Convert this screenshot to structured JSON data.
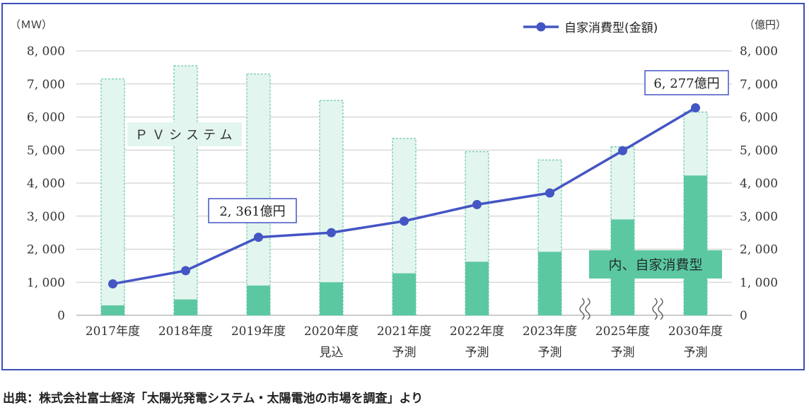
{
  "chart_data": {
    "type": "bar",
    "categories": [
      [
        "2017年度"
      ],
      [
        "2018年度"
      ],
      [
        "2019年度"
      ],
      [
        "2020年度",
        "見込"
      ],
      [
        "2021年度",
        "予測"
      ],
      [
        "2022年度",
        "予測"
      ],
      [
        "2023年度",
        "予測"
      ],
      [
        "2025年度",
        "予測"
      ],
      [
        "2030年度",
        "予測"
      ]
    ],
    "left_axis": {
      "unit": "（ＭＷ）",
      "ticks": [
        "0",
        "1, 000",
        "2, 000",
        "3, 000",
        "4, 000",
        "5, 000",
        "6, 000",
        "7, 000",
        "8, 000"
      ],
      "ylim": [
        0,
        8000
      ]
    },
    "right_axis": {
      "unit": "（億円）",
      "ticks": [
        "0",
        "1, 000",
        "2, 000",
        "3, 000",
        "4, 000",
        "5, 000",
        "6, 000",
        "7, 000",
        "8, 000"
      ],
      "ylim": [
        0,
        8000
      ]
    },
    "series": [
      {
        "name": "ＰＶシステム",
        "kind": "bar",
        "axis": "left",
        "color": "#e3f5ef",
        "border": "#4fbf9a",
        "values": [
          7150,
          7550,
          7300,
          6500,
          5350,
          4950,
          4700,
          5100,
          6150
        ]
      },
      {
        "name": "内、自家消費型",
        "kind": "bar",
        "axis": "left",
        "color": "#5cc8a2",
        "values": [
          300,
          480,
          900,
          1000,
          1270,
          1620,
          1920,
          2900,
          4230
        ]
      },
      {
        "name": "自家消費型(金額)",
        "kind": "line",
        "axis": "right",
        "color": "#4455c4",
        "values": [
          950,
          1350,
          2361,
          2500,
          2850,
          3350,
          3700,
          4980,
          6277
        ]
      }
    ],
    "axis_breaks_before_categories": [
      7,
      8
    ],
    "grid": true,
    "legend": "top-right",
    "annotations": [
      {
        "text": "2, 361億円",
        "category_index": 2
      },
      {
        "text": "6, 277億円",
        "category_index": 8
      }
    ]
  },
  "source_note": "出典：株式会社富士経済「太陽光発電システム・太陽電池の市場を調査」より"
}
